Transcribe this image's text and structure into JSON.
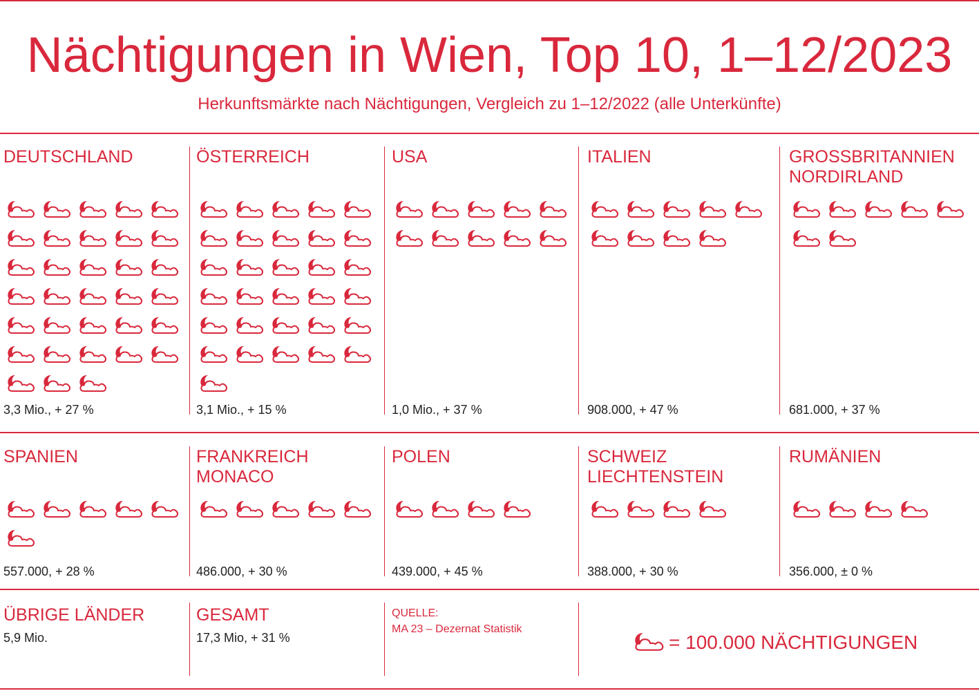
{
  "title": "Nächtigungen in Wien, Top 10, 1–12/2023",
  "subtitle": "Herkunftsmärkte nach Nächtigungen, Vergleich zu 1–12/2022 (alle Unterkünfte)",
  "colors": {
    "accent": "#d9283c",
    "text": "#222222",
    "background": "#ffffff"
  },
  "chart_data": {
    "type": "pictogram",
    "unit_label": "= 100.000 NÄCHTIGUNGEN",
    "unit_value": 100000,
    "icon": "moon-cloud-icon",
    "series": [
      {
        "name": "DEUTSCHLAND",
        "icons": 33,
        "label": "3,3 Mio., + 27 %"
      },
      {
        "name": "ÖSTERREICH",
        "icons": 31,
        "label": "3,1 Mio., + 15 %"
      },
      {
        "name": "USA",
        "icons": 10,
        "label": "1,0 Mio., + 37 %"
      },
      {
        "name": "ITALIEN",
        "icons": 9,
        "label": "908.000, + 47 %"
      },
      {
        "name": "GROSSBRITANNIEN NORDIRLAND",
        "icons": 7,
        "label": "681.000, + 37 %"
      },
      {
        "name": "SPANIEN",
        "icons": 6,
        "label": "557.000, + 28 %"
      },
      {
        "name": "FRANKREICH MONACO",
        "icons": 5,
        "label": "486.000, + 30 %"
      },
      {
        "name": "POLEN",
        "icons": 4,
        "label": "439.000, + 45 %"
      },
      {
        "name": "SCHWEIZ LIECHTENSTEIN",
        "icons": 4,
        "label": "388.000, + 30 %"
      },
      {
        "name": "RUMÄNIEN",
        "icons": 4,
        "label": "356.000, ± 0 %"
      }
    ]
  },
  "countries": [
    {
      "name1": "DEUTSCHLAND",
      "name2": "",
      "icons": 33,
      "value": "3,3 Mio., + 27 %"
    },
    {
      "name1": "ÖSTERREICH",
      "name2": "",
      "icons": 31,
      "value": "3,1 Mio., + 15 %"
    },
    {
      "name1": "USA",
      "name2": "",
      "icons": 10,
      "value": "1,0 Mio., + 37 %"
    },
    {
      "name1": "ITALIEN",
      "name2": "",
      "icons": 9,
      "value": "908.000, + 47 %"
    },
    {
      "name1": "GROSSBRITANNIEN",
      "name2": "NORDIRLAND",
      "icons": 7,
      "value": "681.000, + 37 %"
    },
    {
      "name1": "SPANIEN",
      "name2": "",
      "icons": 6,
      "value": "557.000, + 28 %"
    },
    {
      "name1": "FRANKREICH",
      "name2": "MONACO",
      "icons": 5,
      "value": "486.000, + 30 %"
    },
    {
      "name1": "POLEN",
      "name2": "",
      "icons": 4,
      "value": "439.000, + 45 %"
    },
    {
      "name1": "SCHWEIZ",
      "name2": "LIECHTENSTEIN",
      "icons": 4,
      "value": "388.000, + 30 %"
    },
    {
      "name1": "RUMÄNIEN",
      "name2": "",
      "icons": 4,
      "value": "356.000, ± 0 %"
    }
  ],
  "others": {
    "label": "ÜBRIGE LÄNDER",
    "value": "5,9 Mio."
  },
  "total": {
    "label": "GESAMT",
    "value": "17,3 Mio, + 31 %"
  },
  "source": {
    "label": "QUELLE:",
    "text": "MA 23 – Dezernat Statistik"
  },
  "legend": {
    "text": "= 100.000 NÄCHTIGUNGEN",
    "icon": "moon-cloud-icon"
  }
}
